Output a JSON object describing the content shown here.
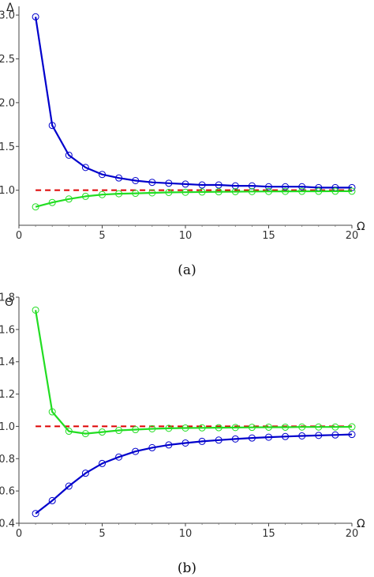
{
  "chart_data": [
    {
      "type": "line",
      "caption": "(a)",
      "xlabel": "Ω",
      "ylabel": "Δ",
      "xlim": [
        0,
        20
      ],
      "ylim": [
        0.6,
        3.1
      ],
      "xticks": [
        0,
        5,
        10,
        15,
        20
      ],
      "yticks": [
        1.0,
        1.5,
        2.0,
        2.5,
        3.0
      ],
      "xtick_labels": [
        "0",
        "5",
        "10",
        "15",
        "20"
      ],
      "ytick_labels": [
        "1.0",
        "1.5",
        "2.0",
        "2.5",
        "3.0"
      ],
      "grid": false,
      "reference_line": {
        "y": 1.0,
        "color": "#dd0000",
        "style": "dashed"
      },
      "series": [
        {
          "color": "#0000cc",
          "marker": "circle",
          "x": [
            1,
            2,
            3,
            4,
            5,
            6,
            7,
            8,
            9,
            10,
            11,
            12,
            13,
            14,
            15,
            16,
            17,
            18,
            19,
            20
          ],
          "y": [
            2.98,
            1.74,
            1.4,
            1.26,
            1.18,
            1.14,
            1.11,
            1.09,
            1.08,
            1.07,
            1.06,
            1.06,
            1.05,
            1.05,
            1.04,
            1.04,
            1.04,
            1.03,
            1.03,
            1.03
          ]
        },
        {
          "color": "#22dd22",
          "marker": "circle",
          "x": [
            1,
            2,
            3,
            4,
            5,
            6,
            7,
            8,
            9,
            10,
            11,
            12,
            13,
            14,
            15,
            16,
            17,
            18,
            19,
            20
          ],
          "y": [
            0.81,
            0.86,
            0.9,
            0.93,
            0.95,
            0.96,
            0.965,
            0.97,
            0.975,
            0.977,
            0.98,
            0.982,
            0.984,
            0.985,
            0.986,
            0.987,
            0.988,
            0.988,
            0.989,
            0.989
          ]
        }
      ]
    },
    {
      "type": "line",
      "caption": "(b)",
      "xlabel": "Ω",
      "ylabel": "Θ",
      "xlim": [
        0,
        20
      ],
      "ylim": [
        0.4,
        1.8
      ],
      "xticks": [
        0,
        5,
        10,
        15,
        20
      ],
      "yticks": [
        0.4,
        0.6,
        0.8,
        1.0,
        1.2,
        1.4,
        1.6,
        1.8
      ],
      "xtick_labels": [
        "0",
        "5",
        "10",
        "15",
        "20"
      ],
      "ytick_labels": [
        "0.4",
        "0.6",
        "0.8",
        "1.0",
        "1.2",
        "1.4",
        "1.6",
        "1.8"
      ],
      "grid": false,
      "reference_line": {
        "y": 1.0,
        "color": "#dd0000",
        "style": "dashed"
      },
      "series": [
        {
          "color": "#22dd22",
          "marker": "circle",
          "x": [
            1,
            2,
            3,
            4,
            5,
            6,
            7,
            8,
            9,
            10,
            11,
            12,
            13,
            14,
            15,
            16,
            17,
            18,
            19,
            20
          ],
          "y": [
            1.72,
            1.09,
            0.97,
            0.955,
            0.965,
            0.975,
            0.98,
            0.985,
            0.988,
            0.99,
            0.991,
            0.992,
            0.993,
            0.994,
            0.995,
            0.995,
            0.996,
            0.996,
            0.996,
            0.997
          ]
        },
        {
          "color": "#0000cc",
          "marker": "circle",
          "x": [
            1,
            2,
            3,
            4,
            5,
            6,
            7,
            8,
            9,
            10,
            11,
            12,
            13,
            14,
            15,
            16,
            17,
            18,
            19,
            20
          ],
          "y": [
            0.46,
            0.54,
            0.63,
            0.71,
            0.77,
            0.81,
            0.845,
            0.868,
            0.885,
            0.897,
            0.907,
            0.915,
            0.922,
            0.928,
            0.933,
            0.937,
            0.941,
            0.944,
            0.947,
            0.95
          ]
        }
      ]
    }
  ]
}
